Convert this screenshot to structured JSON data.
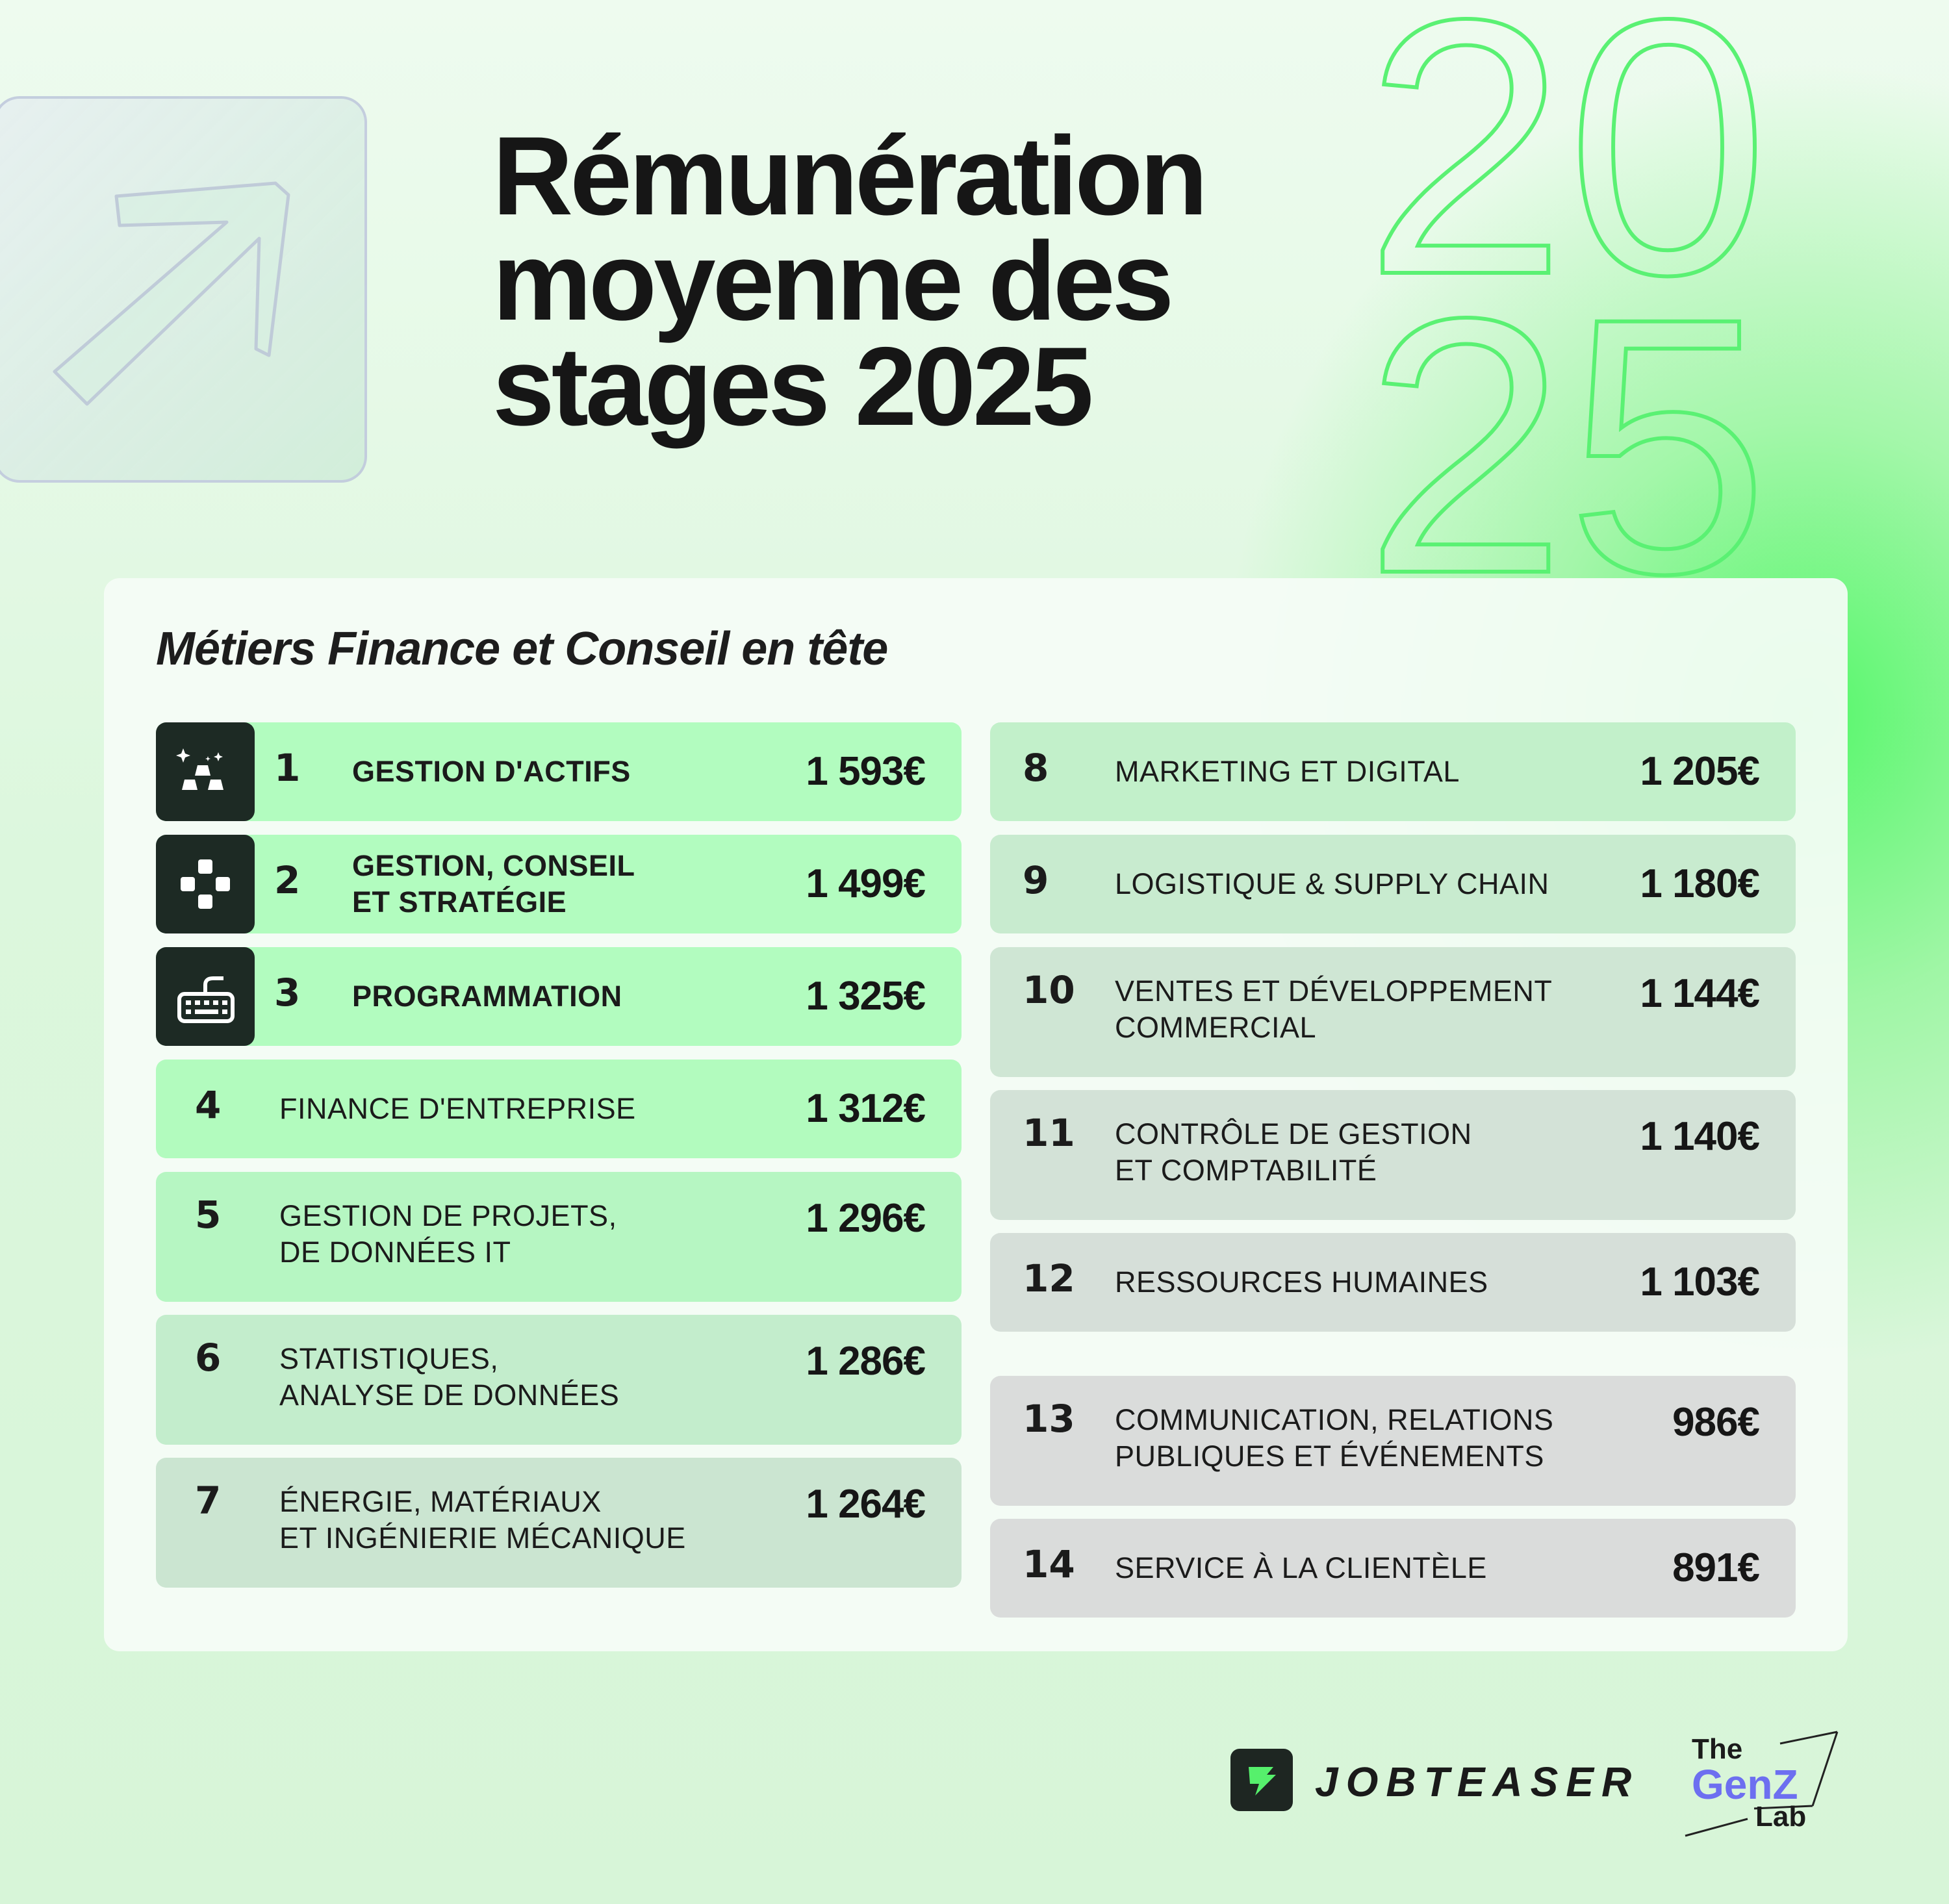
{
  "title_lines": [
    "Rémunération",
    "moyenne des",
    "stages 2025"
  ],
  "year_digits": [
    "20",
    "25"
  ],
  "card": {
    "title": "Métiers Finance et Conseil en tête",
    "left_rows": [
      {
        "rank": "1",
        "label_lines": [
          "GESTION D'ACTIFS"
        ],
        "value": "1 593€",
        "icon": "gold-bars-icon",
        "bg": "#b2fcbf"
      },
      {
        "rank": "2",
        "label_lines": [
          "GESTION, CONSEIL",
          "ET STRATÉGIE"
        ],
        "value": "1 499€",
        "icon": "gamepad-icon",
        "bg": "#b2fcbf"
      },
      {
        "rank": "3",
        "label_lines": [
          "PROGRAMMATION"
        ],
        "value": "1 325€",
        "icon": "keyboard-icon",
        "bg": "#b2fcbf"
      },
      {
        "rank": "4",
        "label_lines": [
          "FINANCE D'ENTREPRISE"
        ],
        "value": "1 312€",
        "bg": "#b2fbbe"
      },
      {
        "rank": "5",
        "label_lines": [
          "GESTION DE PROJETS,",
          "DE DONNÉES IT"
        ],
        "value": "1 296€",
        "bg": "#b6f6c2"
      },
      {
        "rank": "6",
        "label_lines": [
          "STATISTIQUES,",
          "ANALYSE DE DONNÉES"
        ],
        "value": "1 286€",
        "bg": "#c3edcc"
      },
      {
        "rank": "7",
        "label_lines": [
          "ÉNERGIE, MATÉRIAUX",
          "ET INGÉNIERIE MÉCANIQUE"
        ],
        "value": "1 264€",
        "bg": "#cbe5d1"
      }
    ],
    "right_rows": [
      {
        "rank": "8",
        "label_lines": [
          "MARKETING ET DIGITAL"
        ],
        "value": "1 205€",
        "bg": "#c2f0ca"
      },
      {
        "rank": "9",
        "label_lines": [
          "LOGISTIQUE & SUPPLY CHAIN"
        ],
        "value": "1 180€",
        "bg": "#c8ebcf"
      },
      {
        "rank": "10",
        "label_lines": [
          "VENTES ET DÉVELOPPEMENT",
          "COMMERCIAL"
        ],
        "value": "1 144€",
        "bg": "#cfe6d4"
      },
      {
        "rank": "11",
        "label_lines": [
          "CONTRÔLE DE GESTION",
          "ET COMPTABILITÉ"
        ],
        "value": "1 140€",
        "bg": "#d3e2d7"
      },
      {
        "rank": "12",
        "label_lines": [
          "RESSOURCES HUMAINES"
        ],
        "value": "1 103€",
        "bg": "#d6dfd9"
      },
      {
        "rank": "13",
        "label_lines": [
          "COMMUNICATION, RELATIONS",
          "PUBLIQUES ET ÉVÉNEMENTS"
        ],
        "value": "986€",
        "bg": "#dadcdb"
      },
      {
        "rank": "14",
        "label_lines": [
          "SERVICE À LA CLIENTÈLE"
        ],
        "value": "891€",
        "bg": "#dadcdb"
      }
    ]
  },
  "brands": {
    "jobteaser": "JOBTEASER",
    "genz": {
      "the": "The",
      "genz": "GenZ",
      "lab": "Lab"
    }
  },
  "colors": {
    "accent_green": "#5af173",
    "dark_tile": "#1d2a24",
    "genz_purple": "#6d6ff0"
  }
}
